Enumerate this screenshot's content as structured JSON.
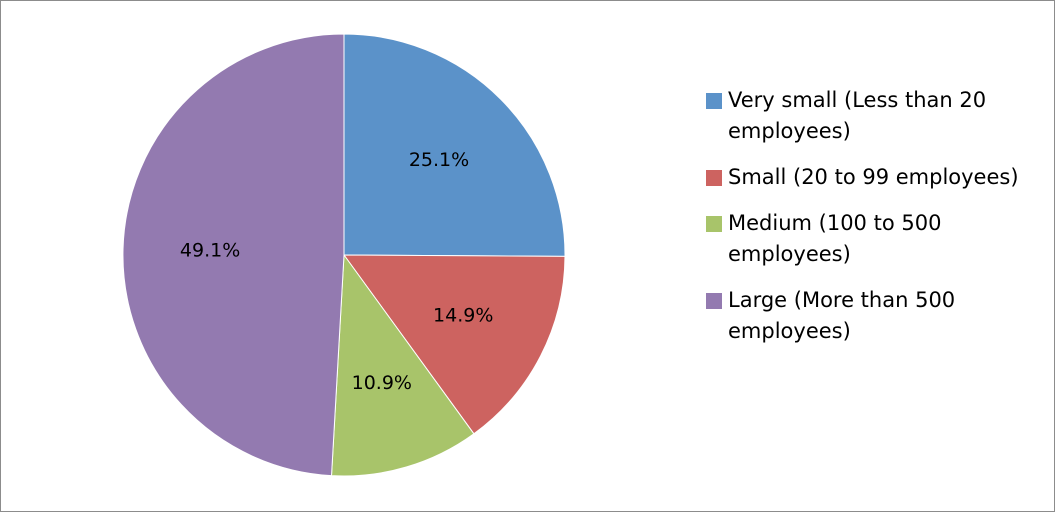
{
  "chart_data": {
    "type": "pie",
    "title": "",
    "start_angle_deg": 0,
    "direction": "clockwise",
    "legend_position": "right",
    "slices": [
      {
        "label": "Very small (Less than 20 employees)",
        "value": 25.1,
        "value_label": "25.1%",
        "color": "#5b92c9"
      },
      {
        "label": "Small (20 to 99 employees)",
        "value": 14.9,
        "value_label": "14.9%",
        "color": "#cd6360"
      },
      {
        "label": "Medium (100 to 500 employees)",
        "value": 10.9,
        "value_label": "10.9%",
        "color": "#a8c46a"
      },
      {
        "label": "Large (More than 500 employees)",
        "value": 49.1,
        "value_label": "49.1%",
        "color": "#937ab0"
      }
    ]
  }
}
